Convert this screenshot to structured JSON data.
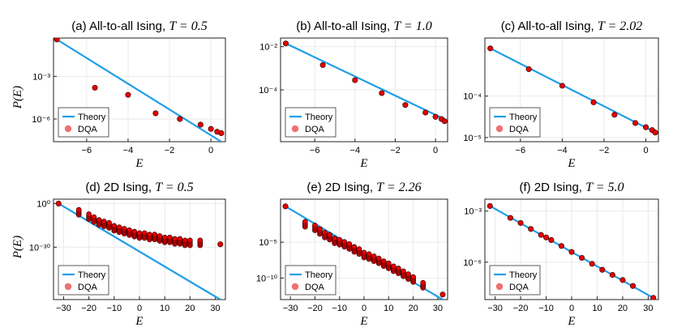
{
  "figure": {
    "shared_ylabel": "P(E)",
    "shared_xlabel": "E",
    "legend_theory": "Theory",
    "legend_dqa": "DQA"
  },
  "colors": {
    "theory": "#1f9ee8",
    "dqa": "#e60000",
    "grid": "#e9e9e9"
  },
  "chart_data": [
    {
      "type": "scatter",
      "title_prefix": "(a) All-to-all Ising,",
      "title_math": "T = 0.5",
      "xlabel": "E",
      "ylabel": "P(E)",
      "xlim": [
        -7.6,
        0.7
      ],
      "ylim_log10": [
        -7.6,
        -0.3
      ],
      "xticks": [
        -6,
        -4,
        -2,
        0
      ],
      "xtick_labels": [
        "−6",
        "−4",
        "−2",
        "0"
      ],
      "yticks_log10": [
        -3,
        -6
      ],
      "ytick_labels": [
        "10⁻³",
        "10⁻⁶"
      ],
      "theory": {
        "x": [
          -7.44,
          0.5
        ],
        "log10y": [
          -0.4,
          -7.6
        ]
      },
      "dqa": {
        "x": [
          -7.44,
          -5.6,
          -4.0,
          -2.67,
          -1.5,
          -0.5,
          0.0,
          0.3,
          0.5
        ],
        "log10y": [
          -0.4,
          -3.8,
          -4.3,
          -5.6,
          -6.0,
          -6.4,
          -6.7,
          -6.9,
          -7.0
        ]
      },
      "legend": "bottom-left"
    },
    {
      "type": "scatter",
      "title_prefix": "(b) All-to-all Ising,",
      "title_math": "T = 1.0",
      "xlabel": "E",
      "ylabel": "",
      "xlim": [
        -7.7,
        0.6
      ],
      "ylim_log10": [
        -6.4,
        -1.6
      ],
      "xticks": [
        -6,
        -4,
        -2,
        0
      ],
      "xtick_labels": [
        "−6",
        "−4",
        "−2",
        "0"
      ],
      "yticks_log10": [
        -2,
        -4
      ],
      "ytick_labels": [
        "10⁻²",
        "10⁻⁴"
      ],
      "theory": {
        "x": [
          -7.44,
          0.55
        ],
        "log10y": [
          -1.85,
          -5.4
        ]
      },
      "dqa": {
        "x": [
          -7.44,
          -5.6,
          -4.0,
          -2.67,
          -1.5,
          -0.5,
          0.0,
          0.3,
          0.45
        ],
        "log10y": [
          -1.85,
          -2.85,
          -3.55,
          -4.15,
          -4.7,
          -5.05,
          -5.25,
          -5.35,
          -5.45
        ]
      },
      "legend": "bottom-left"
    },
    {
      "type": "scatter",
      "title_prefix": "(c) All-to-all Ising,",
      "title_math": "T = 2.02",
      "xlabel": "E",
      "ylabel": "",
      "xlim": [
        -7.7,
        0.6
      ],
      "ylim_log10": [
        -5.1,
        -2.6
      ],
      "xticks": [
        -6,
        -4,
        -2,
        0
      ],
      "xtick_labels": [
        "−6",
        "−4",
        "−2",
        "0"
      ],
      "yticks_log10": [
        -4,
        -5
      ],
      "ytick_labels": [
        "10⁻⁴",
        "10⁻⁵"
      ],
      "theory": {
        "x": [
          -7.44,
          0.55
        ],
        "log10y": [
          -2.85,
          -4.9
        ]
      },
      "dqa": {
        "x": [
          -7.44,
          -5.6,
          -4.0,
          -2.5,
          -1.5,
          -0.5,
          0.0,
          0.3,
          0.45
        ],
        "log10y": [
          -2.85,
          -3.35,
          -3.75,
          -4.15,
          -4.45,
          -4.65,
          -4.75,
          -4.82,
          -4.88
        ]
      },
      "legend": "bottom-left"
    },
    {
      "type": "scatter",
      "title_prefix": "(d) 2D Ising,",
      "title_math": "T = 0.5",
      "xlabel": "E",
      "ylabel": "P(E)",
      "xlim": [
        -34,
        34
      ],
      "ylim_log10": [
        -66,
        3
      ],
      "xticks": [
        -30,
        -20,
        -10,
        0,
        10,
        20,
        30
      ],
      "xtick_labels": [
        "−30",
        "−20",
        "−10",
        "0",
        "10",
        "20",
        "30"
      ],
      "yticks_log10": [
        0,
        -30
      ],
      "ytick_labels": [
        "10⁰",
        "10⁻³⁰"
      ],
      "theory": {
        "x": [
          -32,
          32
        ],
        "log10y": [
          0,
          -66
        ]
      },
      "dqa": {
        "x": [
          -32,
          -24,
          -20,
          -18,
          -16,
          -14,
          -12,
          -10,
          -8,
          -6,
          -4,
          -2,
          0,
          2,
          4,
          6,
          8,
          10,
          12,
          14,
          16,
          18,
          20,
          24,
          32
        ],
        "log10y": [
          0,
          -6,
          -9,
          -11,
          -13,
          -14,
          -15,
          -17,
          -18,
          -19,
          -20,
          -21,
          -22,
          -22,
          -23,
          -23,
          -24,
          -25,
          -25,
          -26,
          -26,
          -27,
          -27,
          -27,
          -28
        ]
      },
      "legend": "bottom-left"
    },
    {
      "type": "scatter",
      "title_prefix": "(e) 2D Ising,",
      "title_math": "T = 2.26",
      "xlabel": "E",
      "ylabel": "",
      "xlim": [
        -34,
        34
      ],
      "ylim_log10": [
        -13,
        1
      ],
      "xticks": [
        -30,
        -20,
        -10,
        0,
        10,
        20,
        30
      ],
      "xtick_labels": [
        "−30",
        "−20",
        "−10",
        "0",
        "10",
        "20",
        "30"
      ],
      "yticks_log10": [
        -5,
        -10
      ],
      "ytick_labels": [
        "10⁻⁵",
        "10⁻¹⁰"
      ],
      "theory": {
        "x": [
          -32,
          32
        ],
        "log10y": [
          0,
          -13
        ]
      },
      "dqa": {
        "x": [
          -32,
          -24,
          -20,
          -18,
          -16,
          -14,
          -12,
          -10,
          -8,
          -6,
          -4,
          -2,
          0,
          2,
          4,
          6,
          8,
          10,
          12,
          14,
          16,
          18,
          20,
          24,
          32
        ],
        "log10y": [
          0,
          -2.5,
          -3,
          -3.5,
          -4,
          -4.3,
          -4.8,
          -5,
          -5.3,
          -5.6,
          -6,
          -6.3,
          -6.8,
          -7,
          -7.3,
          -7.6,
          -8,
          -8.3,
          -8.7,
          -9,
          -9.4,
          -9.8,
          -10.2,
          -11,
          -12.3
        ]
      },
      "legend": "bottom-left"
    },
    {
      "type": "scatter",
      "title_prefix": "(f) 2D Ising,",
      "title_math": "T = 5.0",
      "xlabel": "E",
      "ylabel": "",
      "xlim": [
        -34,
        34
      ],
      "ylim_log10": [
        -8.2,
        -2.3
      ],
      "xticks": [
        -30,
        -20,
        -10,
        0,
        10,
        20,
        30
      ],
      "xtick_labels": [
        "−30",
        "−20",
        "−10",
        "0",
        "10",
        "20",
        "30"
      ],
      "yticks_log10": [
        -3,
        -6
      ],
      "ytick_labels": [
        "10⁻³",
        "10⁻⁶"
      ],
      "theory": {
        "x": [
          -32,
          32
        ],
        "log10y": [
          -2.7,
          -8.1
        ]
      },
      "dqa": {
        "x": [
          -32,
          -24,
          -20,
          -16,
          -12,
          -10,
          -8,
          -4,
          0,
          4,
          8,
          12,
          16,
          20,
          24,
          32
        ],
        "log10y": [
          -2.7,
          -3.4,
          -3.7,
          -4.05,
          -4.4,
          -4.55,
          -4.7,
          -5.05,
          -5.4,
          -5.75,
          -6.1,
          -6.45,
          -6.75,
          -7.05,
          -7.4,
          -8.1
        ]
      },
      "legend": "bottom-left"
    }
  ]
}
